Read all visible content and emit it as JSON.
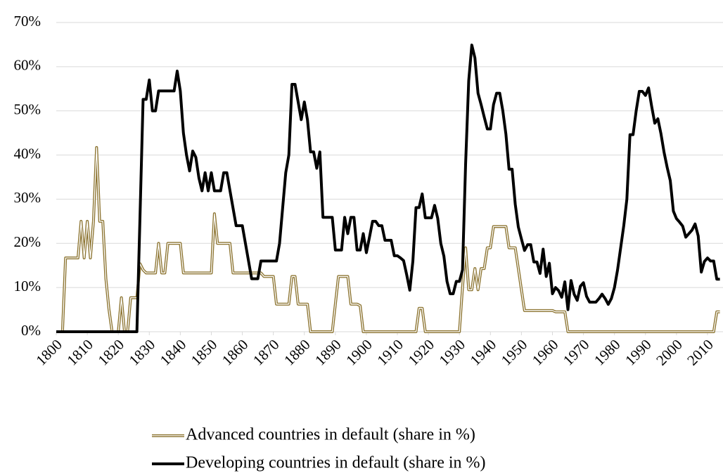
{
  "chart_data": {
    "type": "line",
    "x": [
      1800,
      1801,
      1802,
      1803,
      1804,
      1805,
      1806,
      1807,
      1808,
      1809,
      1810,
      1811,
      1812,
      1813,
      1814,
      1815,
      1816,
      1817,
      1818,
      1819,
      1820,
      1821,
      1822,
      1823,
      1824,
      1825,
      1826,
      1827,
      1828,
      1829,
      1830,
      1831,
      1832,
      1833,
      1834,
      1835,
      1836,
      1837,
      1838,
      1839,
      1840,
      1841,
      1842,
      1843,
      1844,
      1845,
      1846,
      1847,
      1848,
      1849,
      1850,
      1851,
      1852,
      1853,
      1854,
      1855,
      1856,
      1857,
      1858,
      1859,
      1860,
      1861,
      1862,
      1863,
      1864,
      1865,
      1866,
      1867,
      1868,
      1869,
      1870,
      1871,
      1872,
      1873,
      1874,
      1875,
      1876,
      1877,
      1878,
      1879,
      1880,
      1881,
      1882,
      1883,
      1884,
      1885,
      1886,
      1887,
      1888,
      1889,
      1890,
      1891,
      1892,
      1893,
      1894,
      1895,
      1896,
      1897,
      1898,
      1899,
      1900,
      1901,
      1902,
      1903,
      1904,
      1905,
      1906,
      1907,
      1908,
      1909,
      1910,
      1911,
      1912,
      1913,
      1914,
      1915,
      1916,
      1917,
      1918,
      1919,
      1920,
      1921,
      1922,
      1923,
      1924,
      1925,
      1926,
      1927,
      1928,
      1929,
      1930,
      1931,
      1932,
      1933,
      1934,
      1935,
      1936,
      1937,
      1938,
      1939,
      1940,
      1941,
      1942,
      1943,
      1944,
      1945,
      1946,
      1947,
      1948,
      1949,
      1950,
      1951,
      1952,
      1953,
      1954,
      1955,
      1956,
      1957,
      1958,
      1959,
      1960,
      1961,
      1962,
      1963,
      1964,
      1965,
      1966,
      1967,
      1968,
      1969,
      1970,
      1971,
      1972,
      1973,
      1974,
      1975,
      1976,
      1977,
      1978,
      1979,
      1980,
      1981,
      1982,
      1983,
      1984,
      1985,
      1986,
      1987,
      1988,
      1989,
      1990,
      1991,
      1992,
      1993,
      1994,
      1995,
      1996,
      1997,
      1998,
      1999,
      2000,
      2001,
      2002,
      2003,
      2004,
      2005,
      2006,
      2007,
      2008,
      2009,
      2010,
      2011,
      2012,
      2013,
      2014
    ],
    "series": [
      {
        "name": "Advanced countries in default (share in %)",
        "color": "#8c7431",
        "style": "double",
        "values": [
          0,
          0,
          0,
          16.7,
          16.7,
          16.7,
          16.7,
          16.7,
          25,
          16.7,
          25,
          16.7,
          25,
          41.7,
          25,
          25,
          12,
          5,
          0,
          0,
          0,
          7.7,
          0,
          0,
          7.7,
          7.7,
          7.7,
          15.4,
          14,
          13.3,
          13.3,
          13.3,
          13.3,
          20,
          13.3,
          13.3,
          20,
          20,
          20,
          20,
          20,
          13.3,
          13.3,
          13.3,
          13.3,
          13.3,
          13.3,
          13.3,
          13.3,
          13.3,
          13.3,
          26.7,
          20,
          20,
          20,
          20,
          20,
          13.3,
          13.3,
          13.3,
          13.3,
          13.3,
          13.3,
          13.3,
          13.3,
          13.3,
          13.3,
          12.5,
          12.5,
          12.5,
          12.5,
          6.25,
          6.25,
          6.25,
          6.25,
          6.25,
          12.5,
          12.5,
          6.25,
          6.25,
          6.25,
          6.25,
          0,
          0,
          0,
          0,
          0,
          0,
          0,
          0,
          6.25,
          12.5,
          12.5,
          12.5,
          12.5,
          6.25,
          6.25,
          6.25,
          5.9,
          0,
          0,
          0,
          0,
          0,
          0,
          0,
          0,
          0,
          0,
          0,
          0,
          0,
          0,
          0,
          0,
          0,
          0,
          5.3,
          5.3,
          0,
          0,
          0,
          0,
          0,
          0,
          0,
          0,
          0,
          0,
          0,
          0,
          10,
          19,
          9.5,
          9.5,
          14.3,
          9.5,
          14.3,
          14.3,
          19,
          19,
          23.8,
          23.8,
          23.8,
          23.8,
          23.8,
          19,
          19,
          19,
          14.3,
          9.5,
          4.8,
          4.8,
          4.8,
          4.8,
          4.8,
          4.8,
          4.8,
          4.8,
          4.8,
          4.8,
          4.5,
          4.5,
          4.5,
          4.5,
          0,
          0,
          0,
          0,
          0,
          0,
          0,
          0,
          0,
          0,
          0,
          0,
          0,
          0,
          0,
          0,
          0,
          0,
          0,
          0,
          0,
          0,
          0,
          0,
          0,
          0,
          0,
          0,
          0,
          0,
          0,
          0,
          0,
          0,
          0,
          0,
          0,
          0,
          0,
          0,
          0,
          0,
          0,
          0,
          0,
          0,
          0,
          0,
          4.5,
          4.5
        ]
      },
      {
        "name": "Developing countries in default (share in %)",
        "color": "#000000",
        "style": "solid",
        "values": [
          0,
          0,
          0,
          0,
          0,
          0,
          0,
          0,
          0,
          0,
          0,
          0,
          0,
          0,
          0,
          0,
          0,
          0,
          0,
          0,
          0,
          0,
          0,
          0,
          0,
          0,
          0,
          26,
          52.6,
          52.6,
          57,
          50,
          50,
          54.5,
          54.5,
          54.5,
          54.5,
          54.5,
          54.5,
          59,
          54.5,
          45,
          40,
          36.4,
          40.9,
          39.5,
          34.8,
          31.9,
          36,
          31.9,
          36,
          31.9,
          31.9,
          31.9,
          36,
          36,
          32,
          28,
          24,
          24,
          24,
          20,
          16,
          12,
          12,
          12,
          16,
          16,
          16,
          16,
          16,
          16,
          20,
          28,
          36,
          40,
          56,
          56,
          52,
          48,
          52,
          48,
          40.7,
          40.7,
          37,
          40.7,
          25.9,
          25.9,
          25.9,
          25.9,
          18.5,
          18.5,
          18.5,
          25.9,
          22.2,
          25.9,
          25.9,
          18.5,
          18.5,
          22.2,
          17.9,
          21.4,
          25,
          25,
          24,
          24,
          20.7,
          20.7,
          20.7,
          17.2,
          17.2,
          16.7,
          16.1,
          12.9,
          9.4,
          16,
          28.1,
          28.1,
          31.2,
          25.8,
          25.8,
          25.8,
          28.6,
          25.7,
          20,
          17.1,
          11.4,
          8.6,
          8.6,
          11.4,
          11.4,
          14,
          38,
          56.8,
          64.9,
          62,
          54,
          51.4,
          48.6,
          45.9,
          45.9,
          51.4,
          54,
          54,
          50,
          44.7,
          36.8,
          36.8,
          28.9,
          23.7,
          21,
          18.4,
          19.7,
          19.7,
          15.8,
          15.8,
          13.2,
          18.7,
          12.5,
          15.5,
          8.6,
          10,
          9.3,
          7.8,
          11.3,
          5,
          11.6,
          8.5,
          7.1,
          10.3,
          11.1,
          8,
          6.7,
          6.7,
          6.7,
          7.5,
          8.5,
          7.5,
          6.2,
          7.5,
          10,
          14,
          19,
          24,
          30,
          44.6,
          44.6,
          50,
          54.4,
          54.4,
          53.5,
          55.2,
          51,
          47.2,
          48.2,
          44.8,
          40.6,
          37.2,
          34.2,
          27.3,
          25.6,
          24.8,
          23.9,
          21.4,
          22.2,
          23,
          24.4,
          21.7,
          13.5,
          15.9,
          16.7,
          16,
          16,
          11.9,
          11.9
        ]
      }
    ],
    "xlim": [
      1800,
      2015
    ],
    "xticks": [
      1800,
      1810,
      1820,
      1830,
      1840,
      1850,
      1860,
      1870,
      1880,
      1890,
      1900,
      1910,
      1920,
      1930,
      1940,
      1950,
      1960,
      1970,
      1980,
      1990,
      2000,
      2010
    ],
    "ylim": [
      0,
      70
    ],
    "yticks": [
      {
        "value": 0,
        "label": "0%"
      },
      {
        "value": 10,
        "label": "10%"
      },
      {
        "value": 20,
        "label": "20%"
      },
      {
        "value": 30,
        "label": "30%"
      },
      {
        "value": 40,
        "label": "40%"
      },
      {
        "value": 50,
        "label": "50%"
      },
      {
        "value": 60,
        "label": "60%"
      },
      {
        "value": 70,
        "label": "70%"
      }
    ],
    "grid": true
  }
}
